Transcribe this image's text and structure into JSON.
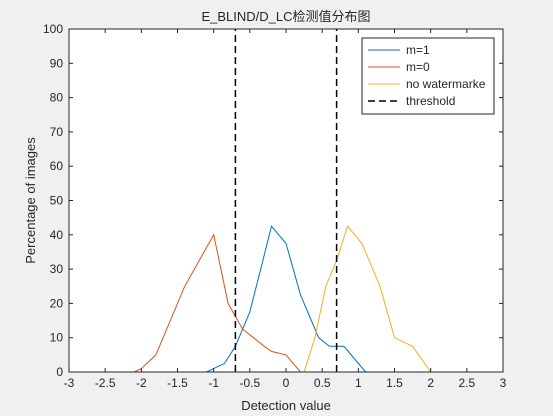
{
  "chart_data": {
    "type": "line",
    "title": "E_BLIND/D_LC检测值分布图",
    "xlabel": "Detection value",
    "ylabel": "Percentage of images",
    "xlim": [
      -3,
      3
    ],
    "ylim": [
      0,
      100
    ],
    "xticks": [
      -3,
      -2.5,
      -2,
      -1.5,
      -1,
      -0.5,
      0,
      0.5,
      1,
      1.5,
      2,
      2.5,
      3
    ],
    "xtick_labels": [
      "-3",
      "-2.5",
      "-2",
      "-1.5",
      "-1",
      "-0.5",
      "0",
      "0.5",
      "1",
      "1.5",
      "2",
      "2.5",
      "3"
    ],
    "yticks": [
      0,
      10,
      20,
      30,
      40,
      50,
      60,
      70,
      80,
      90,
      100
    ],
    "ytick_labels": [
      "0",
      "10",
      "20",
      "30",
      "40",
      "50",
      "60",
      "70",
      "80",
      "90",
      "100"
    ],
    "grid": false,
    "legend_position": "top-right",
    "series": [
      {
        "name": "m=1",
        "color": "#0072BD",
        "style": "solid",
        "x": [
          -3,
          -1.1,
          -1.0,
          -0.85,
          -0.7,
          -0.5,
          -0.35,
          -0.2,
          0,
          0.2,
          0.45,
          0.6,
          0.8,
          1.1,
          1.3,
          3
        ],
        "y": [
          0,
          0,
          1,
          2.5,
          7.5,
          17.5,
          30,
          42.5,
          37.5,
          22.5,
          10,
          7.5,
          7.5,
          0,
          0,
          0
        ]
      },
      {
        "name": "m=0",
        "color": "#D95319",
        "style": "solid",
        "x": [
          -3,
          -2.1,
          -2.0,
          -1.8,
          -1.6,
          -1.4,
          -1.2,
          -1.0,
          -0.8,
          -0.6,
          -0.3,
          -0.2,
          0,
          0.2,
          3
        ],
        "y": [
          0,
          0,
          1,
          5,
          15,
          25,
          32.5,
          40,
          20,
          12.5,
          7.5,
          6,
          5,
          0,
          0
        ]
      },
      {
        "name": "no watermarke",
        "color": "#EDB120",
        "style": "solid",
        "x": [
          -3,
          0.25,
          0.4,
          0.55,
          0.7,
          0.85,
          1.05,
          1.3,
          1.5,
          1.75,
          2.0,
          3
        ],
        "y": [
          0,
          0,
          10,
          25,
          32.5,
          42.5,
          37.5,
          25,
          10,
          7.5,
          0,
          0
        ]
      },
      {
        "name": "threshold",
        "color": "#000000",
        "style": "dashed",
        "x": [
          -0.7,
          -0.7
        ],
        "y": [
          0,
          100
        ]
      },
      {
        "name": "threshold",
        "color": "#000000",
        "style": "dashed",
        "x": [
          0.7,
          0.7
        ],
        "y": [
          0,
          100
        ]
      }
    ],
    "legend": [
      "m=1",
      "m=0",
      "no watermarke",
      "threshold"
    ]
  }
}
